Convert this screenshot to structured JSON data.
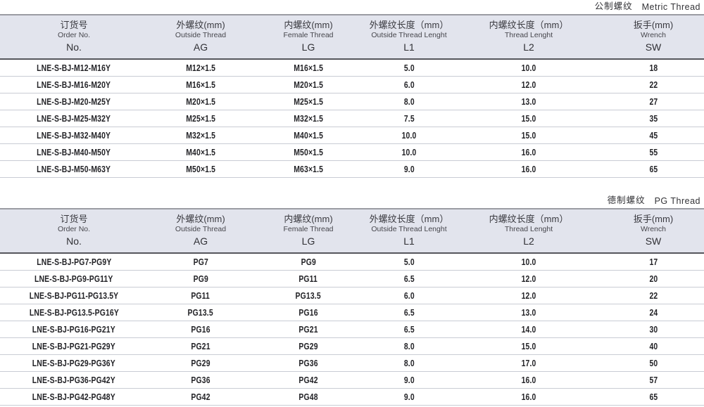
{
  "colors": {
    "header_bg": "#e2e4ed",
    "header_top_border": "#9b9ca3",
    "header_bottom_border": "#55565c",
    "row_divider": "#c9ccd4",
    "text": "#232327"
  },
  "metric": {
    "title_cn": "公制螺纹",
    "title_en": "Metric Thread",
    "columns": [
      {
        "cn": "订货号",
        "en": "Order No.",
        "code": "No."
      },
      {
        "cn": "外螺纹(mm)",
        "en": "Outside Thread",
        "code": "AG"
      },
      {
        "cn": "内螺纹(mm)",
        "en": "Female Thread",
        "code": "LG"
      },
      {
        "cn": "外螺纹长度（mm）",
        "en": "Outside Thread Lenght",
        "code": "L1"
      },
      {
        "cn": "内螺纹长度（mm）",
        "en": "Thread Lenght",
        "code": "L2"
      },
      {
        "cn": "扳手(mm)",
        "en": "Wrench",
        "code": "SW"
      }
    ],
    "rows": [
      [
        "LNE-S-BJ-M12-M16Y",
        "M12×1.5",
        "M16×1.5",
        "5.0",
        "10.0",
        "18"
      ],
      [
        "LNE-S-BJ-M16-M20Y",
        "M16×1.5",
        "M20×1.5",
        "6.0",
        "12.0",
        "22"
      ],
      [
        "LNE-S-BJ-M20-M25Y",
        "M20×1.5",
        "M25×1.5",
        "8.0",
        "13.0",
        "27"
      ],
      [
        "LNE-S-BJ-M25-M32Y",
        "M25×1.5",
        "M32×1.5",
        "7.5",
        "15.0",
        "35"
      ],
      [
        "LNE-S-BJ-M32-M40Y",
        "M32×1.5",
        "M40×1.5",
        "10.0",
        "15.0",
        "45"
      ],
      [
        "LNE-S-BJ-M40-M50Y",
        "M40×1.5",
        "M50×1.5",
        "10.0",
        "16.0",
        "55"
      ],
      [
        "LNE-S-BJ-M50-M63Y",
        "M50×1.5",
        "M63×1.5",
        "9.0",
        "16.0",
        "65"
      ]
    ]
  },
  "pg": {
    "title_cn": "德制螺纹",
    "title_en": "PG Thread",
    "columns": [
      {
        "cn": "订货号",
        "en": "Order No.",
        "code": "No."
      },
      {
        "cn": "外螺纹(mm)",
        "en": "Outside Thread",
        "code": "AG"
      },
      {
        "cn": "内螺纹(mm)",
        "en": "Female Thread",
        "code": "LG"
      },
      {
        "cn": "外螺纹长度（mm）",
        "en": "Outside Thread Lenght",
        "code": "L1"
      },
      {
        "cn": "内螺纹长度（mm）",
        "en": "Thread Lenght",
        "code": "L2"
      },
      {
        "cn": "扳手(mm)",
        "en": "Wrench",
        "code": "SW"
      }
    ],
    "rows": [
      [
        "LNE-S-BJ-PG7-PG9Y",
        "PG7",
        "PG9",
        "5.0",
        "10.0",
        "17"
      ],
      [
        "LNE-S-BJ-PG9-PG11Y",
        "PG9",
        "PG11",
        "6.5",
        "12.0",
        "20"
      ],
      [
        "LNE-S-BJ-PG11-PG13.5Y",
        "PG11",
        "PG13.5",
        "6.0",
        "12.0",
        "22"
      ],
      [
        "LNE-S-BJ-PG13.5-PG16Y",
        "PG13.5",
        "PG16",
        "6.5",
        "13.0",
        "24"
      ],
      [
        "LNE-S-BJ-PG16-PG21Y",
        "PG16",
        "PG21",
        "6.5",
        "14.0",
        "30"
      ],
      [
        "LNE-S-BJ-PG21-PG29Y",
        "PG21",
        "PG29",
        "8.0",
        "15.0",
        "40"
      ],
      [
        "LNE-S-BJ-PG29-PG36Y",
        "PG29",
        "PG36",
        "8.0",
        "17.0",
        "50"
      ],
      [
        "LNE-S-BJ-PG36-PG42Y",
        "PG36",
        "PG42",
        "9.0",
        "16.0",
        "57"
      ],
      [
        "LNE-S-BJ-PG42-PG48Y",
        "PG42",
        "PG48",
        "9.0",
        "16.0",
        "65"
      ]
    ]
  }
}
